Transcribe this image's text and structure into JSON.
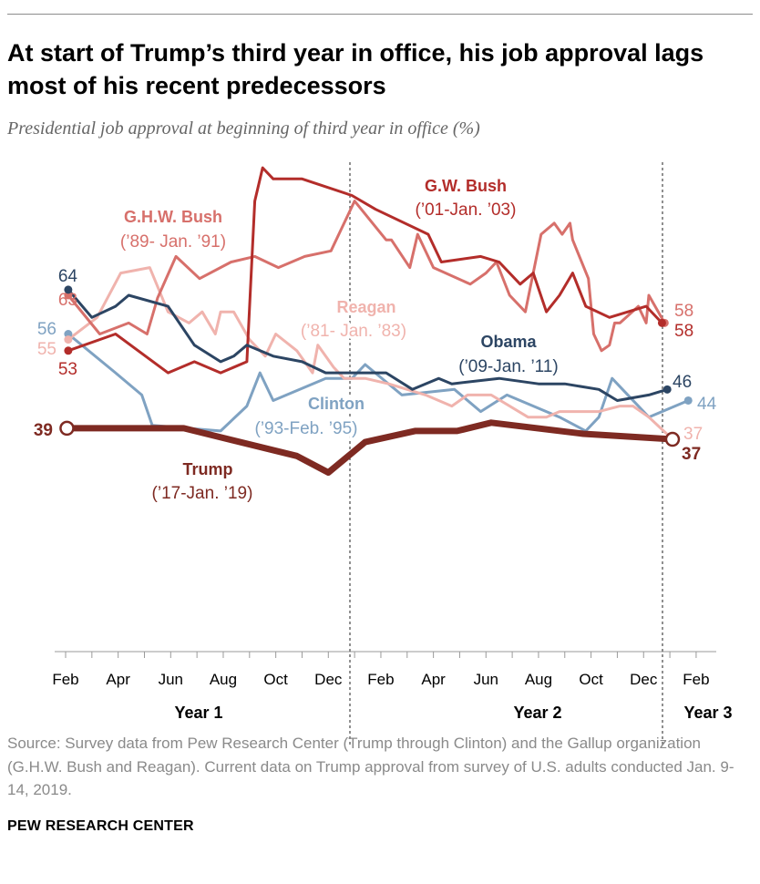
{
  "title": "At start of Trump’s third year in office, his job approval lags most of his recent predecessors",
  "subtitle": "Presidential job approval at beginning of third year in office (%)",
  "source": "Source: Survey data from Pew Research Center (Trump through Clinton) and the Gallup organization (G.H.W. Bush and Reagan). Current data on Trump approval from survey of U.S. adults conducted Jan. 9-14, 2019.",
  "brand": "PEW RESEARCH CENTER",
  "chart_data": {
    "type": "line",
    "title": "Presidential job approval at beginning of third year in office (%)",
    "x_format": "[year_in_office, month, approval]",
    "x_tick_labels": [
      "Feb",
      "Apr",
      "Jun",
      "Aug",
      "Oct",
      "Dec",
      "Feb",
      "Apr",
      "Jun",
      "Aug",
      "Oct",
      "Dec",
      "Feb"
    ],
    "year_labels": [
      "Year 1",
      "Year 2",
      "Year 3"
    ],
    "ylim": [
      0,
      90
    ],
    "grid": false,
    "series": [
      {
        "key": "gwbush",
        "name": "G.W. Bush",
        "dates": "(’01-Jan. ’03)",
        "color": "#b32d2a",
        "start_label": "53",
        "end_label": "58",
        "points": [
          [
            1,
            2.1,
            53
          ],
          [
            1,
            3.9,
            56
          ],
          [
            1,
            5.9,
            49
          ],
          [
            1,
            6.9,
            51
          ],
          [
            1,
            7.9,
            49
          ],
          [
            1,
            8.9,
            51
          ],
          [
            1,
            9.2,
            80
          ],
          [
            1,
            9.5,
            86
          ],
          [
            1,
            9.9,
            84
          ],
          [
            1,
            11.0,
            84
          ],
          [
            1,
            12.9,
            81
          ],
          [
            2,
            1.8,
            78.5
          ],
          [
            2,
            3.8,
            74
          ],
          [
            2,
            4.3,
            69
          ],
          [
            2,
            5.8,
            70
          ],
          [
            2,
            6.5,
            69
          ],
          [
            2,
            7.3,
            65
          ],
          [
            2,
            7.8,
            67
          ],
          [
            2,
            8.3,
            60
          ],
          [
            2,
            8.8,
            63
          ],
          [
            2,
            9.3,
            67
          ],
          [
            2,
            9.8,
            61
          ],
          [
            2,
            10.7,
            59
          ],
          [
            2,
            12.1,
            61
          ],
          [
            2,
            12.7,
            58
          ]
        ]
      },
      {
        "key": "ghwbush",
        "name": "G.H.W. Bush",
        "dates": "(’89- Jan. ’91)",
        "color": "#d7706b",
        "start_label": "63",
        "end_label": "58",
        "points": [
          [
            1,
            2.1,
            63
          ],
          [
            1,
            3.3,
            56
          ],
          [
            1,
            4.4,
            58
          ],
          [
            1,
            5.1,
            56
          ],
          [
            1,
            5.5,
            62.5
          ],
          [
            1,
            6.2,
            70
          ],
          [
            1,
            7.1,
            66
          ],
          [
            1,
            8.3,
            69
          ],
          [
            1,
            9.2,
            70
          ],
          [
            1,
            10.1,
            68
          ],
          [
            1,
            11.1,
            70
          ],
          [
            1,
            12.1,
            71
          ],
          [
            2,
            1.0,
            80
          ],
          [
            2,
            2.2,
            73
          ],
          [
            2,
            2.4,
            73
          ],
          [
            2,
            3.1,
            68
          ],
          [
            2,
            3.4,
            74
          ],
          [
            2,
            4.0,
            68
          ],
          [
            2,
            5.4,
            65
          ],
          [
            2,
            6.0,
            67
          ],
          [
            2,
            6.4,
            69
          ],
          [
            2,
            6.9,
            63
          ],
          [
            2,
            7.5,
            60
          ],
          [
            2,
            8.1,
            74
          ],
          [
            2,
            8.6,
            76
          ],
          [
            2,
            8.9,
            74
          ],
          [
            2,
            9.2,
            76
          ],
          [
            2,
            9.3,
            73
          ],
          [
            2,
            9.9,
            66
          ],
          [
            2,
            10.1,
            56
          ],
          [
            2,
            10.4,
            53
          ],
          [
            2,
            10.7,
            54
          ],
          [
            2,
            10.9,
            58
          ],
          [
            2,
            11.1,
            58
          ],
          [
            2,
            11.8,
            61
          ],
          [
            2,
            12.1,
            58
          ],
          [
            2,
            12.2,
            63
          ],
          [
            2,
            12.8,
            58
          ]
        ]
      },
      {
        "key": "reagan",
        "name": "Reagan",
        "dates": "(’81- Jan. ’83)",
        "color": "#f0b3ad",
        "start_label": "55",
        "end_label": "37",
        "points": [
          [
            1,
            2.1,
            55
          ],
          [
            1,
            3.2,
            59
          ],
          [
            1,
            4.1,
            67
          ],
          [
            1,
            5.2,
            68
          ],
          [
            1,
            5.9,
            60
          ],
          [
            1,
            6.3,
            59
          ],
          [
            1,
            6.7,
            58
          ],
          [
            1,
            7.2,
            60
          ],
          [
            1,
            7.7,
            56
          ],
          [
            1,
            7.9,
            60
          ],
          [
            1,
            8.4,
            60
          ],
          [
            1,
            9.0,
            55
          ],
          [
            1,
            9.6,
            52
          ],
          [
            1,
            10.0,
            56
          ],
          [
            1,
            10.8,
            53
          ],
          [
            1,
            11.4,
            49
          ],
          [
            1,
            11.6,
            54
          ],
          [
            1,
            12.2,
            50
          ],
          [
            1,
            12.6,
            48
          ],
          [
            2,
            1.4,
            48
          ],
          [
            2,
            2.3,
            47
          ],
          [
            2,
            3.7,
            45
          ],
          [
            2,
            4.7,
            43
          ],
          [
            2,
            5.3,
            45
          ],
          [
            2,
            6.2,
            45
          ],
          [
            2,
            7.6,
            41
          ],
          [
            2,
            8.3,
            41
          ],
          [
            2,
            8.8,
            42
          ],
          [
            2,
            10.3,
            42
          ],
          [
            2,
            11.1,
            43
          ],
          [
            2,
            11.6,
            43
          ],
          [
            2,
            12.2,
            41
          ],
          [
            3,
            1.1,
            37
          ]
        ]
      },
      {
        "key": "obama",
        "name": "Obama",
        "dates": "(’09-Jan. ’11)",
        "color": "#2c4563",
        "start_label": "64",
        "end_label": "46",
        "points": [
          [
            1,
            2.1,
            64
          ],
          [
            1,
            3.0,
            59
          ],
          [
            1,
            3.9,
            61
          ],
          [
            1,
            4.4,
            63
          ],
          [
            1,
            5.9,
            61
          ],
          [
            1,
            6.9,
            54
          ],
          [
            1,
            7.9,
            51
          ],
          [
            1,
            8.4,
            52
          ],
          [
            1,
            8.9,
            54
          ],
          [
            1,
            9.9,
            52
          ],
          [
            1,
            11.0,
            51
          ],
          [
            1,
            11.9,
            49
          ],
          [
            1,
            12.9,
            49
          ],
          [
            2,
            2.2,
            49
          ],
          [
            2,
            3.2,
            46
          ],
          [
            2,
            4.2,
            48
          ],
          [
            2,
            4.7,
            47
          ],
          [
            2,
            6.5,
            48
          ],
          [
            2,
            8.0,
            47
          ],
          [
            2,
            9.0,
            47
          ],
          [
            2,
            10.3,
            46
          ],
          [
            2,
            11.0,
            44
          ],
          [
            2,
            12.2,
            45
          ],
          [
            2,
            12.9,
            46
          ]
        ]
      },
      {
        "key": "clinton",
        "name": "Clinton",
        "dates": "(’93-Feb. ’95)",
        "color": "#7fa2c2",
        "start_label": "56",
        "end_label": "44",
        "points": [
          [
            1,
            2.1,
            56
          ],
          [
            1,
            3.9,
            49
          ],
          [
            1,
            4.9,
            45
          ],
          [
            1,
            5.3,
            39.5
          ],
          [
            1,
            7.9,
            38.5
          ],
          [
            1,
            8.9,
            43
          ],
          [
            1,
            9.4,
            49
          ],
          [
            1,
            9.9,
            44
          ],
          [
            1,
            11.9,
            48
          ],
          [
            1,
            12.9,
            48
          ],
          [
            2,
            1.4,
            50.5
          ],
          [
            2,
            2.8,
            45
          ],
          [
            2,
            4.8,
            46
          ],
          [
            2,
            5.8,
            42
          ],
          [
            2,
            6.8,
            45
          ],
          [
            2,
            8.8,
            41
          ],
          [
            2,
            9.8,
            38.5
          ],
          [
            2,
            10.3,
            41
          ],
          [
            2,
            10.8,
            48
          ],
          [
            2,
            12.2,
            41
          ],
          [
            3,
            1.7,
            44
          ]
        ]
      },
      {
        "key": "trump",
        "name": "Trump",
        "dates": "(’17-Jan. ’19)",
        "color": "#7e2a22",
        "start_label": "39",
        "end_label": "37",
        "points": [
          [
            1,
            2.05,
            39
          ],
          [
            1,
            6.5,
            39
          ],
          [
            1,
            10.8,
            34
          ],
          [
            1,
            12.0,
            31
          ],
          [
            2,
            1.4,
            36.5
          ],
          [
            2,
            3.3,
            38.5
          ],
          [
            2,
            4.9,
            38.5
          ],
          [
            2,
            6.2,
            40
          ],
          [
            2,
            9.7,
            38
          ],
          [
            3,
            1.1,
            37
          ]
        ]
      }
    ]
  }
}
